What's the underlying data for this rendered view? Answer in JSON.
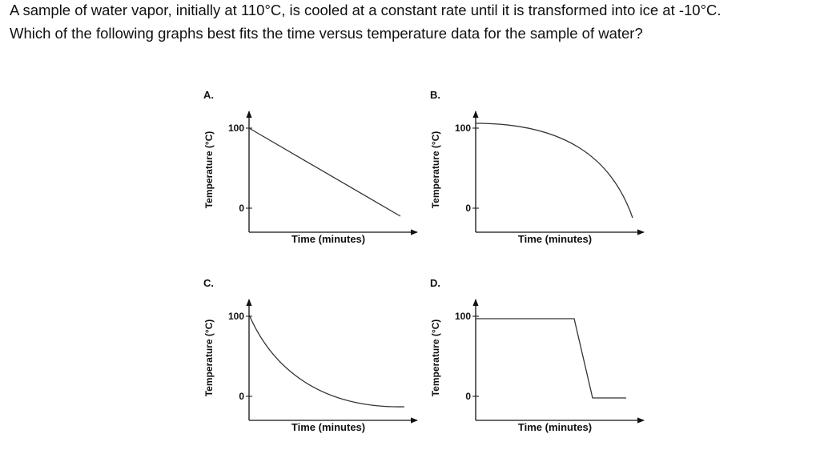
{
  "question": {
    "lines": [
      "A sample of water vapor, initially at 110°C, is cooled at a constant rate until it is transformed into ice at -10°C.",
      "Which of the following graphs best fits the time versus temperature data for the sample of water?"
    ]
  },
  "options": [
    {
      "letter": "A.",
      "y_label": "Temperature (°C)",
      "x_label": "Time (minutes)",
      "ticks": [
        "100",
        "0"
      ]
    },
    {
      "letter": "B.",
      "y_label": "Temperature (°C)",
      "x_label": "Time (minutes)",
      "ticks": [
        "100",
        "0"
      ]
    },
    {
      "letter": "C.",
      "y_label": "Temperature (°C)",
      "x_label": "Time (minutes)",
      "ticks": [
        "100",
        "0"
      ]
    },
    {
      "letter": "D.",
      "y_label": "Temperature (°C)",
      "x_label": "Time (minutes)",
      "ticks": [
        "100",
        "0"
      ]
    }
  ]
}
